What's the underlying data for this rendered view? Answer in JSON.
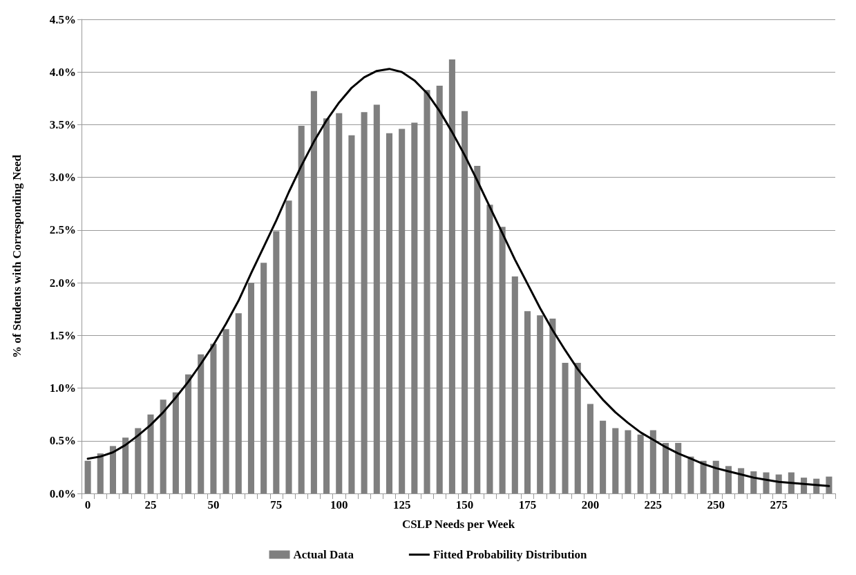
{
  "chart_data": {
    "type": "bar",
    "xlabel": "CSLP Needs per Week",
    "ylabel": "% of Students with Corresponding Need",
    "categories": [
      "0",
      null,
      null,
      null,
      null,
      "25",
      null,
      null,
      null,
      null,
      "50",
      null,
      null,
      null,
      null,
      "75",
      null,
      null,
      null,
      null,
      "100",
      null,
      null,
      null,
      null,
      "125",
      null,
      null,
      null,
      null,
      "150",
      null,
      null,
      null,
      null,
      "175",
      null,
      null,
      null,
      null,
      "200",
      null,
      null,
      null,
      null,
      "225",
      null,
      null,
      null,
      null,
      "250",
      null,
      null,
      null,
      null,
      "275",
      null,
      null,
      null,
      null
    ],
    "series": [
      {
        "name": "Actual Data",
        "color": "#7f7f7f",
        "values": [
          0.31,
          0.38,
          0.45,
          0.53,
          0.62,
          0.75,
          0.89,
          0.96,
          1.13,
          1.32,
          1.42,
          1.56,
          1.71,
          2.0,
          2.19,
          2.49,
          2.78,
          3.49,
          3.82,
          3.56,
          3.61,
          3.4,
          3.62,
          3.69,
          3.42,
          3.46,
          3.52,
          3.83,
          3.87,
          4.12,
          3.63,
          3.11,
          2.74,
          2.53,
          2.06,
          1.73,
          1.69,
          1.66,
          1.24,
          1.24,
          0.85,
          0.69,
          0.62,
          0.6,
          0.56,
          0.6,
          0.48,
          0.48,
          0.35,
          0.31,
          0.31,
          0.26,
          0.24,
          0.21,
          0.2,
          0.18,
          0.2,
          0.15,
          0.14,
          0.16
        ]
      },
      {
        "name": "Fitted Probability Distribution",
        "type": "line",
        "color": "#000000",
        "values": [
          0.33,
          0.35,
          0.39,
          0.46,
          0.55,
          0.65,
          0.77,
          0.91,
          1.06,
          1.23,
          1.41,
          1.61,
          1.83,
          2.09,
          2.34,
          2.59,
          2.86,
          3.11,
          3.34,
          3.54,
          3.71,
          3.85,
          3.95,
          4.01,
          4.03,
          4.0,
          3.92,
          3.8,
          3.63,
          3.43,
          3.21,
          2.97,
          2.72,
          2.47,
          2.22,
          1.99,
          1.76,
          1.55,
          1.36,
          1.18,
          1.03,
          0.89,
          0.77,
          0.67,
          0.58,
          0.51,
          0.44,
          0.38,
          0.33,
          0.28,
          0.24,
          0.21,
          0.18,
          0.15,
          0.13,
          0.11,
          0.1,
          0.09,
          0.08,
          0.07
        ]
      }
    ],
    "ylim": [
      0,
      4.5
    ],
    "yticks": [
      {
        "value": 0,
        "label": "0.0%"
      },
      {
        "value": 0.5,
        "label": "0.5%"
      },
      {
        "value": 1,
        "label": "1.0%"
      },
      {
        "value": 1.5,
        "label": "1.5%"
      },
      {
        "value": 2,
        "label": "2.0%"
      },
      {
        "value": 2.5,
        "label": "2.5%"
      },
      {
        "value": 3,
        "label": "3.0%"
      },
      {
        "value": 3.5,
        "label": "3.5%"
      },
      {
        "value": 4,
        "label": "4.0%"
      },
      {
        "value": 4.5,
        "label": "4.5%"
      }
    ],
    "grid": "y",
    "legend": "bottom",
    "marker": "none",
    "line_style": "solid"
  }
}
